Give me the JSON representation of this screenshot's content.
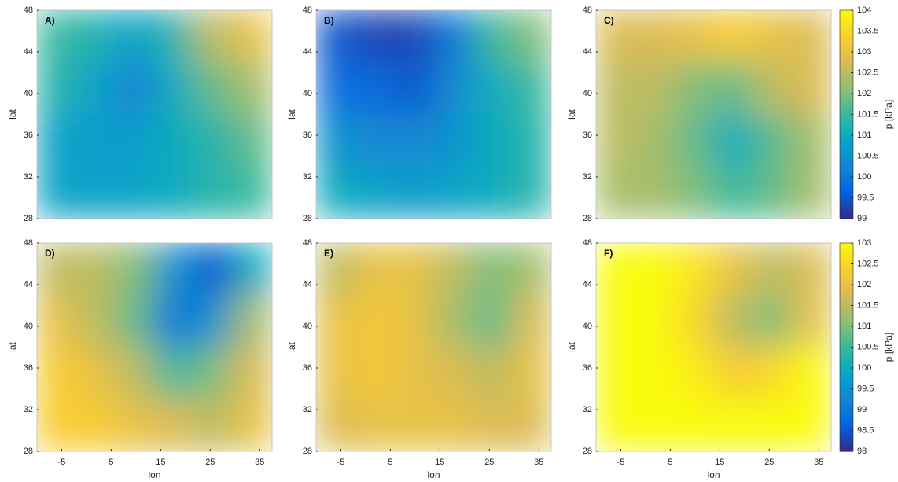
{
  "chart_data": [
    {
      "type": "heatmap",
      "ylabel": "lat",
      "xlim": [
        -10,
        37.5
      ],
      "ylim": [
        28,
        48
      ],
      "yticks": [
        28,
        32,
        36,
        40,
        44,
        48
      ],
      "colormap": "parula",
      "colorbar": {
        "label": "p [kPa]",
        "ylim": [
          99,
          104
        ],
        "yticks": [
          99,
          99.5,
          100,
          100.5,
          101,
          101.5,
          102,
          102.5,
          103,
          103.5,
          104
        ]
      },
      "panels": [
        {
          "label": "A)",
          "z": [
            [
              101.5,
              101.2,
              100.8,
              101.3,
              102.5,
              103
            ],
            [
              101.3,
              100.8,
              100.2,
              101,
              101.8,
              102.3
            ],
            [
              100.8,
              100.7,
              100.7,
              101,
              101.3,
              101.8
            ],
            [
              100.8,
              100.8,
              100.8,
              101,
              101.3,
              101.5
            ]
          ]
        },
        {
          "label": "B)",
          "z": [
            [
              99.5,
              99.3,
              99.3,
              100,
              101.5,
              102
            ],
            [
              99.8,
              99.8,
              99.5,
              100.3,
              101,
              101.5
            ],
            [
              100.5,
              100.3,
              100.3,
              100.5,
              101,
              101.3
            ],
            [
              101,
              100.8,
              100.7,
              100.8,
              101,
              101.3
            ]
          ]
        },
        {
          "label": "C)",
          "z": [
            [
              102.8,
              102.8,
              103,
              103.3,
              103,
              102.8
            ],
            [
              102.5,
              102.5,
              102,
              101.8,
              102.5,
              102.8
            ],
            [
              102.5,
              102.3,
              101.8,
              101,
              101.7,
              102.3
            ],
            [
              102.3,
              102.3,
              102,
              101.5,
              101.8,
              102.3
            ]
          ]
        }
      ]
    },
    {
      "type": "heatmap",
      "ylabel": "lat",
      "xlabel": "lon",
      "xlim": [
        -10,
        37.5
      ],
      "ylim": [
        28,
        48
      ],
      "xticks": [
        -5,
        5,
        15,
        25,
        35
      ],
      "yticks": [
        28,
        32,
        36,
        40,
        44,
        48
      ],
      "colormap": "parula",
      "colorbar": {
        "label": "p [kPa]",
        "ylim": [
          98,
          103
        ],
        "yticks": [
          98,
          98.5,
          99,
          99.5,
          100,
          100.5,
          101,
          101.5,
          102,
          102.5,
          103
        ]
      },
      "panels": [
        {
          "label": "D)",
          "z": [
            [
              101.5,
              101.5,
              101,
              99.5,
              98.5,
              100
            ],
            [
              102,
              101.5,
              100.8,
              99,
              99.5,
              101.3
            ],
            [
              102.3,
              102,
              101.5,
              100.5,
              101,
              101.8
            ],
            [
              102.3,
              102.3,
              102,
              101.8,
              101.5,
              102
            ]
          ]
        },
        {
          "label": "E)",
          "z": [
            [
              101.5,
              102,
              102,
              101.5,
              101,
              101.3
            ],
            [
              102,
              102.2,
              102,
              101.3,
              100.8,
              101.8
            ],
            [
              102,
              102.2,
              102,
              101.8,
              101.5,
              102
            ],
            [
              101.8,
              102,
              102,
              102,
              101.8,
              101.8
            ]
          ]
        },
        {
          "label": "F)",
          "z": [
            [
              103,
              103,
              102.7,
              102,
              101.5,
              101.8
            ],
            [
              103,
              103,
              102.5,
              101.5,
              101,
              102
            ],
            [
              103,
              103,
              102.8,
              102.3,
              102.5,
              103
            ],
            [
              103,
              103,
              103,
              103,
              103,
              103
            ]
          ]
        }
      ]
    }
  ]
}
